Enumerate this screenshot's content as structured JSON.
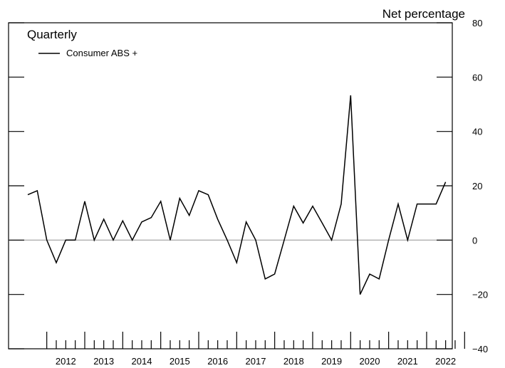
{
  "chart_data": {
    "type": "line",
    "title": "",
    "frequency_label": "Quarterly",
    "ylabel": "Net percentage",
    "xlabel": "",
    "ylim": [
      -40,
      80
    ],
    "yticks": [
      -40,
      -20,
      0,
      20,
      40,
      60,
      80
    ],
    "xlim": [
      2011.5,
      2023.0
    ],
    "year_labels": [
      "2012",
      "2013",
      "2014",
      "2015",
      "2016",
      "2017",
      "2018",
      "2019",
      "2020",
      "2021",
      "2022"
    ],
    "legend": {
      "position": "top-left"
    },
    "zero_line": true,
    "series": [
      {
        "name": "Consumer ABS +",
        "color": "#000000",
        "x": [
          2011.5,
          2011.75,
          2012.0,
          2012.25,
          2012.5,
          2012.75,
          2013.0,
          2013.25,
          2013.5,
          2013.75,
          2014.0,
          2014.25,
          2014.5,
          2014.75,
          2015.0,
          2015.25,
          2015.5,
          2015.75,
          2016.0,
          2016.25,
          2016.5,
          2016.75,
          2017.0,
          2017.25,
          2017.5,
          2017.75,
          2018.0,
          2018.25,
          2018.5,
          2018.75,
          2019.0,
          2019.25,
          2019.5,
          2019.75,
          2020.0,
          2020.25,
          2020.5,
          2020.75,
          2021.0,
          2021.25,
          2021.5,
          2021.75,
          2022.0,
          2022.25,
          2022.5
        ],
        "values": [
          16.7,
          18.2,
          0,
          -8.3,
          0,
          0,
          14.3,
          0,
          7.7,
          0,
          7.1,
          0,
          6.7,
          8.3,
          14.3,
          0,
          15.4,
          9.1,
          18.2,
          16.7,
          7.7,
          0,
          -8.3,
          6.7,
          0,
          -14.3,
          -12.5,
          0,
          12.5,
          6.3,
          12.5,
          6.3,
          0,
          13.3,
          53.3,
          -20.0,
          -12.5,
          -14.3,
          0,
          13.3,
          0,
          13.3,
          13.3,
          13.3,
          21.4
        ]
      }
    ]
  }
}
